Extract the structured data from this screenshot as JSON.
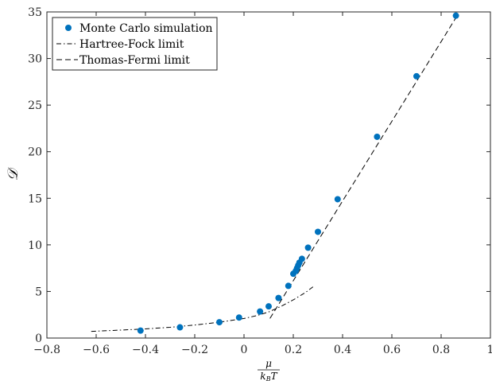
{
  "chart_data": {
    "type": "scatter",
    "xlabel_num": "μ",
    "xlabel_den": "k_B T",
    "ylabel": "𝒟",
    "xlim": [
      -0.8,
      1.0
    ],
    "ylim": [
      0,
      35
    ],
    "x_ticks": [
      -0.8,
      -0.6,
      -0.4,
      -0.2,
      0,
      0.2,
      0.4,
      0.6,
      0.8,
      1
    ],
    "x_tick_labels": [
      "−0.8",
      "−0.6",
      "−0.4",
      "−0.2",
      "0",
      "0.2",
      "0.4",
      "0.6",
      "0.8",
      "1"
    ],
    "y_ticks": [
      0,
      5,
      10,
      15,
      20,
      25,
      30,
      35
    ],
    "y_tick_labels": [
      "0",
      "5",
      "10",
      "15",
      "20",
      "25",
      "30",
      "35"
    ],
    "grid": false,
    "legend_position": "top-left",
    "series": [
      {
        "name": "Monte Carlo simulation",
        "kind": "markers",
        "color": "#0072BD",
        "x": [
          -0.42,
          -0.26,
          -0.1,
          -0.02,
          0.065,
          0.1,
          0.14,
          0.18,
          0.2,
          0.21,
          0.215,
          0.22,
          0.225,
          0.235,
          0.26,
          0.3,
          0.38,
          0.54,
          0.7,
          0.86
        ],
        "y": [
          0.8,
          1.15,
          1.7,
          2.2,
          2.85,
          3.4,
          4.3,
          5.6,
          6.9,
          7.2,
          7.5,
          7.8,
          8.1,
          8.5,
          9.7,
          11.4,
          14.9,
          21.6,
          28.1,
          34.6
        ]
      },
      {
        "name": "Hartree-Fock limit",
        "kind": "line",
        "dash": "dashdot",
        "color": "#000000",
        "x": [
          -0.62,
          -0.5,
          -0.4,
          -0.3,
          -0.2,
          -0.1,
          0,
          0.05,
          0.1,
          0.15,
          0.2,
          0.25,
          0.28
        ],
        "y": [
          0.72,
          0.85,
          0.98,
          1.15,
          1.4,
          1.7,
          2.1,
          2.4,
          2.8,
          3.4,
          4.1,
          4.9,
          5.5
        ]
      },
      {
        "name": "Thomas-Fermi limit",
        "kind": "line",
        "dash": "dashed",
        "color": "#000000",
        "x": [
          0.105,
          0.87
        ],
        "y": [
          2.1,
          34.8
        ]
      }
    ]
  }
}
